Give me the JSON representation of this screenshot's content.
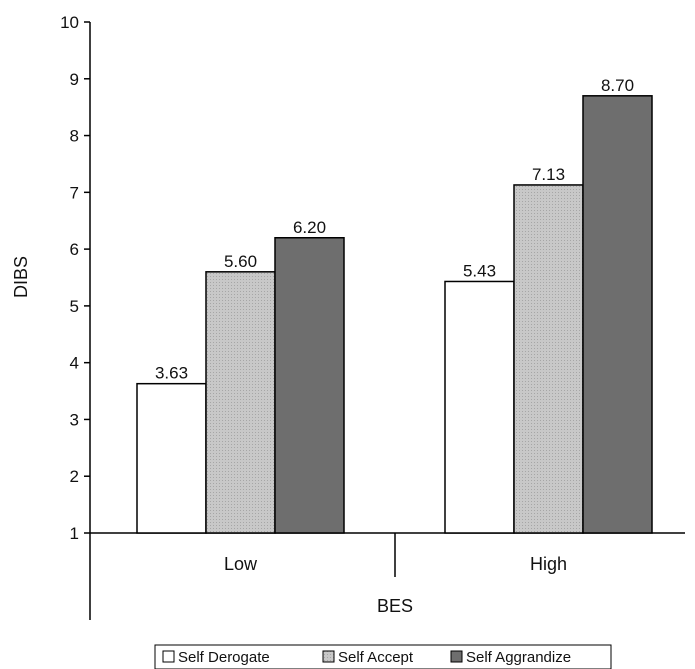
{
  "chart_data": {
    "type": "bar",
    "categories": [
      "Low",
      "High"
    ],
    "series": [
      {
        "name": "Self Derogate",
        "values": [
          3.63,
          5.43
        ],
        "labels": [
          "3.63",
          "5.43"
        ]
      },
      {
        "name": "Self Accept",
        "values": [
          5.6,
          7.13
        ],
        "labels": [
          "5.60",
          "7.13"
        ]
      },
      {
        "name": "Self Aggrandize",
        "values": [
          6.2,
          8.7
        ],
        "labels": [
          "6.20",
          "8.70"
        ]
      }
    ],
    "yticks": [
      "1",
      "2",
      "3",
      "4",
      "5",
      "6",
      "7",
      "8",
      "9",
      "10"
    ],
    "xlabel": "BES",
    "ylabel": "DIBS",
    "ylim": [
      1,
      10
    ],
    "grid": false,
    "legend_position": "bottom",
    "colors": {
      "Self Derogate": "#ffffff",
      "Self Accept": "#c4c4c4",
      "Self Aggrandize": "#6e6e6e"
    }
  }
}
